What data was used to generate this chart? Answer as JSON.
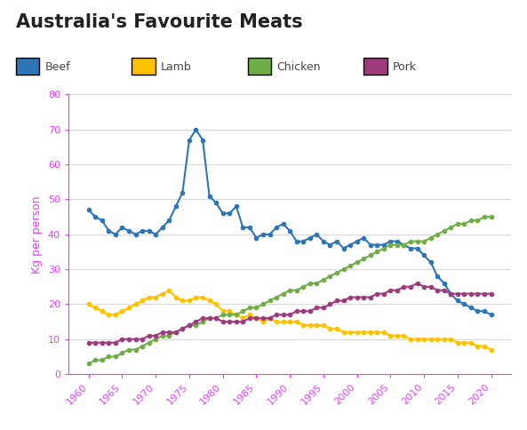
{
  "title": "Australia's Favourite Meats",
  "ylabel": "Kg per person",
  "series": {
    "Beef": {
      "color": "#2e75b6",
      "data": {
        "1960": 47,
        "1961": 45,
        "1962": 44,
        "1963": 41,
        "1964": 40,
        "1965": 42,
        "1966": 41,
        "1967": 40,
        "1968": 41,
        "1969": 41,
        "1970": 40,
        "1971": 42,
        "1972": 44,
        "1973": 48,
        "1974": 52,
        "1975": 67,
        "1976": 70,
        "1977": 67,
        "1978": 51,
        "1979": 49,
        "1980": 46,
        "1981": 46,
        "1982": 48,
        "1983": 42,
        "1984": 42,
        "1985": 39,
        "1986": 40,
        "1987": 40,
        "1988": 42,
        "1989": 43,
        "1990": 41,
        "1991": 38,
        "1992": 38,
        "1993": 39,
        "1994": 40,
        "1995": 38,
        "1996": 37,
        "1997": 38,
        "1998": 36,
        "1999": 37,
        "2000": 38,
        "2001": 39,
        "2002": 37,
        "2003": 37,
        "2004": 37,
        "2005": 38,
        "2006": 38,
        "2007": 37,
        "2008": 36,
        "2009": 36,
        "2010": 34,
        "2011": 32,
        "2012": 28,
        "2013": 26,
        "2014": 23,
        "2015": 21,
        "2016": 20,
        "2017": 19,
        "2018": 18,
        "2019": 18,
        "2020": 17
      }
    },
    "Lamb": {
      "color": "#ffc000",
      "data": {
        "1960": 20,
        "1961": 19,
        "1962": 18,
        "1963": 17,
        "1964": 17,
        "1965": 18,
        "1966": 19,
        "1967": 20,
        "1968": 21,
        "1969": 22,
        "1970": 22,
        "1971": 23,
        "1972": 24,
        "1973": 22,
        "1974": 21,
        "1975": 21,
        "1976": 22,
        "1977": 22,
        "1978": 21,
        "1979": 20,
        "1980": 18,
        "1981": 18,
        "1982": 17,
        "1983": 16,
        "1984": 17,
        "1985": 16,
        "1986": 15,
        "1987": 16,
        "1988": 15,
        "1989": 15,
        "1990": 15,
        "1991": 15,
        "1992": 14,
        "1993": 14,
        "1994": 14,
        "1995": 14,
        "1996": 13,
        "1997": 13,
        "1998": 12,
        "1999": 12,
        "2000": 12,
        "2001": 12,
        "2002": 12,
        "2003": 12,
        "2004": 12,
        "2005": 11,
        "2006": 11,
        "2007": 11,
        "2008": 10,
        "2009": 10,
        "2010": 10,
        "2011": 10,
        "2012": 10,
        "2013": 10,
        "2014": 10,
        "2015": 9,
        "2016": 9,
        "2017": 9,
        "2018": 8,
        "2019": 8,
        "2020": 7
      }
    },
    "Chicken": {
      "color": "#70ad47",
      "data": {
        "1960": 3,
        "1961": 4,
        "1962": 4,
        "1963": 5,
        "1964": 5,
        "1965": 6,
        "1966": 7,
        "1967": 7,
        "1968": 8,
        "1969": 9,
        "1970": 10,
        "1971": 11,
        "1972": 11,
        "1973": 12,
        "1974": 13,
        "1975": 14,
        "1976": 14,
        "1977": 15,
        "1978": 16,
        "1979": 16,
        "1980": 17,
        "1981": 17,
        "1982": 17,
        "1983": 18,
        "1984": 19,
        "1985": 19,
        "1986": 20,
        "1987": 21,
        "1988": 22,
        "1989": 23,
        "1990": 24,
        "1991": 24,
        "1992": 25,
        "1993": 26,
        "1994": 26,
        "1995": 27,
        "1996": 28,
        "1997": 29,
        "1998": 30,
        "1999": 31,
        "2000": 32,
        "2001": 33,
        "2002": 34,
        "2003": 35,
        "2004": 36,
        "2005": 37,
        "2006": 37,
        "2007": 37,
        "2008": 38,
        "2009": 38,
        "2010": 38,
        "2011": 39,
        "2012": 40,
        "2013": 41,
        "2014": 42,
        "2015": 43,
        "2016": 43,
        "2017": 44,
        "2018": 44,
        "2019": 45,
        "2020": 45
      }
    },
    "Pork": {
      "color": "#9e3b7d",
      "data": {
        "1960": 9,
        "1961": 9,
        "1962": 9,
        "1963": 9,
        "1964": 9,
        "1965": 10,
        "1966": 10,
        "1967": 10,
        "1968": 10,
        "1969": 11,
        "1970": 11,
        "1971": 12,
        "1972": 12,
        "1973": 12,
        "1974": 13,
        "1975": 14,
        "1976": 15,
        "1977": 16,
        "1978": 16,
        "1979": 16,
        "1980": 15,
        "1981": 15,
        "1982": 15,
        "1983": 15,
        "1984": 16,
        "1985": 16,
        "1986": 16,
        "1987": 16,
        "1988": 17,
        "1989": 17,
        "1990": 17,
        "1991": 18,
        "1992": 18,
        "1993": 18,
        "1994": 19,
        "1995": 19,
        "1996": 20,
        "1997": 21,
        "1998": 21,
        "1999": 22,
        "2000": 22,
        "2001": 22,
        "2002": 22,
        "2003": 23,
        "2004": 23,
        "2005": 24,
        "2006": 24,
        "2007": 25,
        "2008": 25,
        "2009": 26,
        "2010": 25,
        "2011": 25,
        "2012": 24,
        "2013": 24,
        "2014": 23,
        "2015": 23,
        "2016": 23,
        "2017": 23,
        "2018": 23,
        "2019": 23,
        "2020": 23
      }
    }
  },
  "ylim": [
    0,
    80
  ],
  "yticks": [
    0,
    10,
    20,
    30,
    40,
    50,
    60,
    70,
    80
  ],
  "xticks": [
    1960,
    1965,
    1970,
    1975,
    1980,
    1985,
    1990,
    1995,
    2000,
    2005,
    2010,
    2015,
    2020
  ],
  "axis_color": "#e040fb",
  "title_fontsize": 15,
  "label_fontsize": 9,
  "tick_fontsize": 8,
  "legend_fontsize": 9,
  "marker": "o",
  "markersize": 3,
  "linewidth": 1.5,
  "background_color": "#ffffff",
  "grid_color": "#d0d0d0"
}
